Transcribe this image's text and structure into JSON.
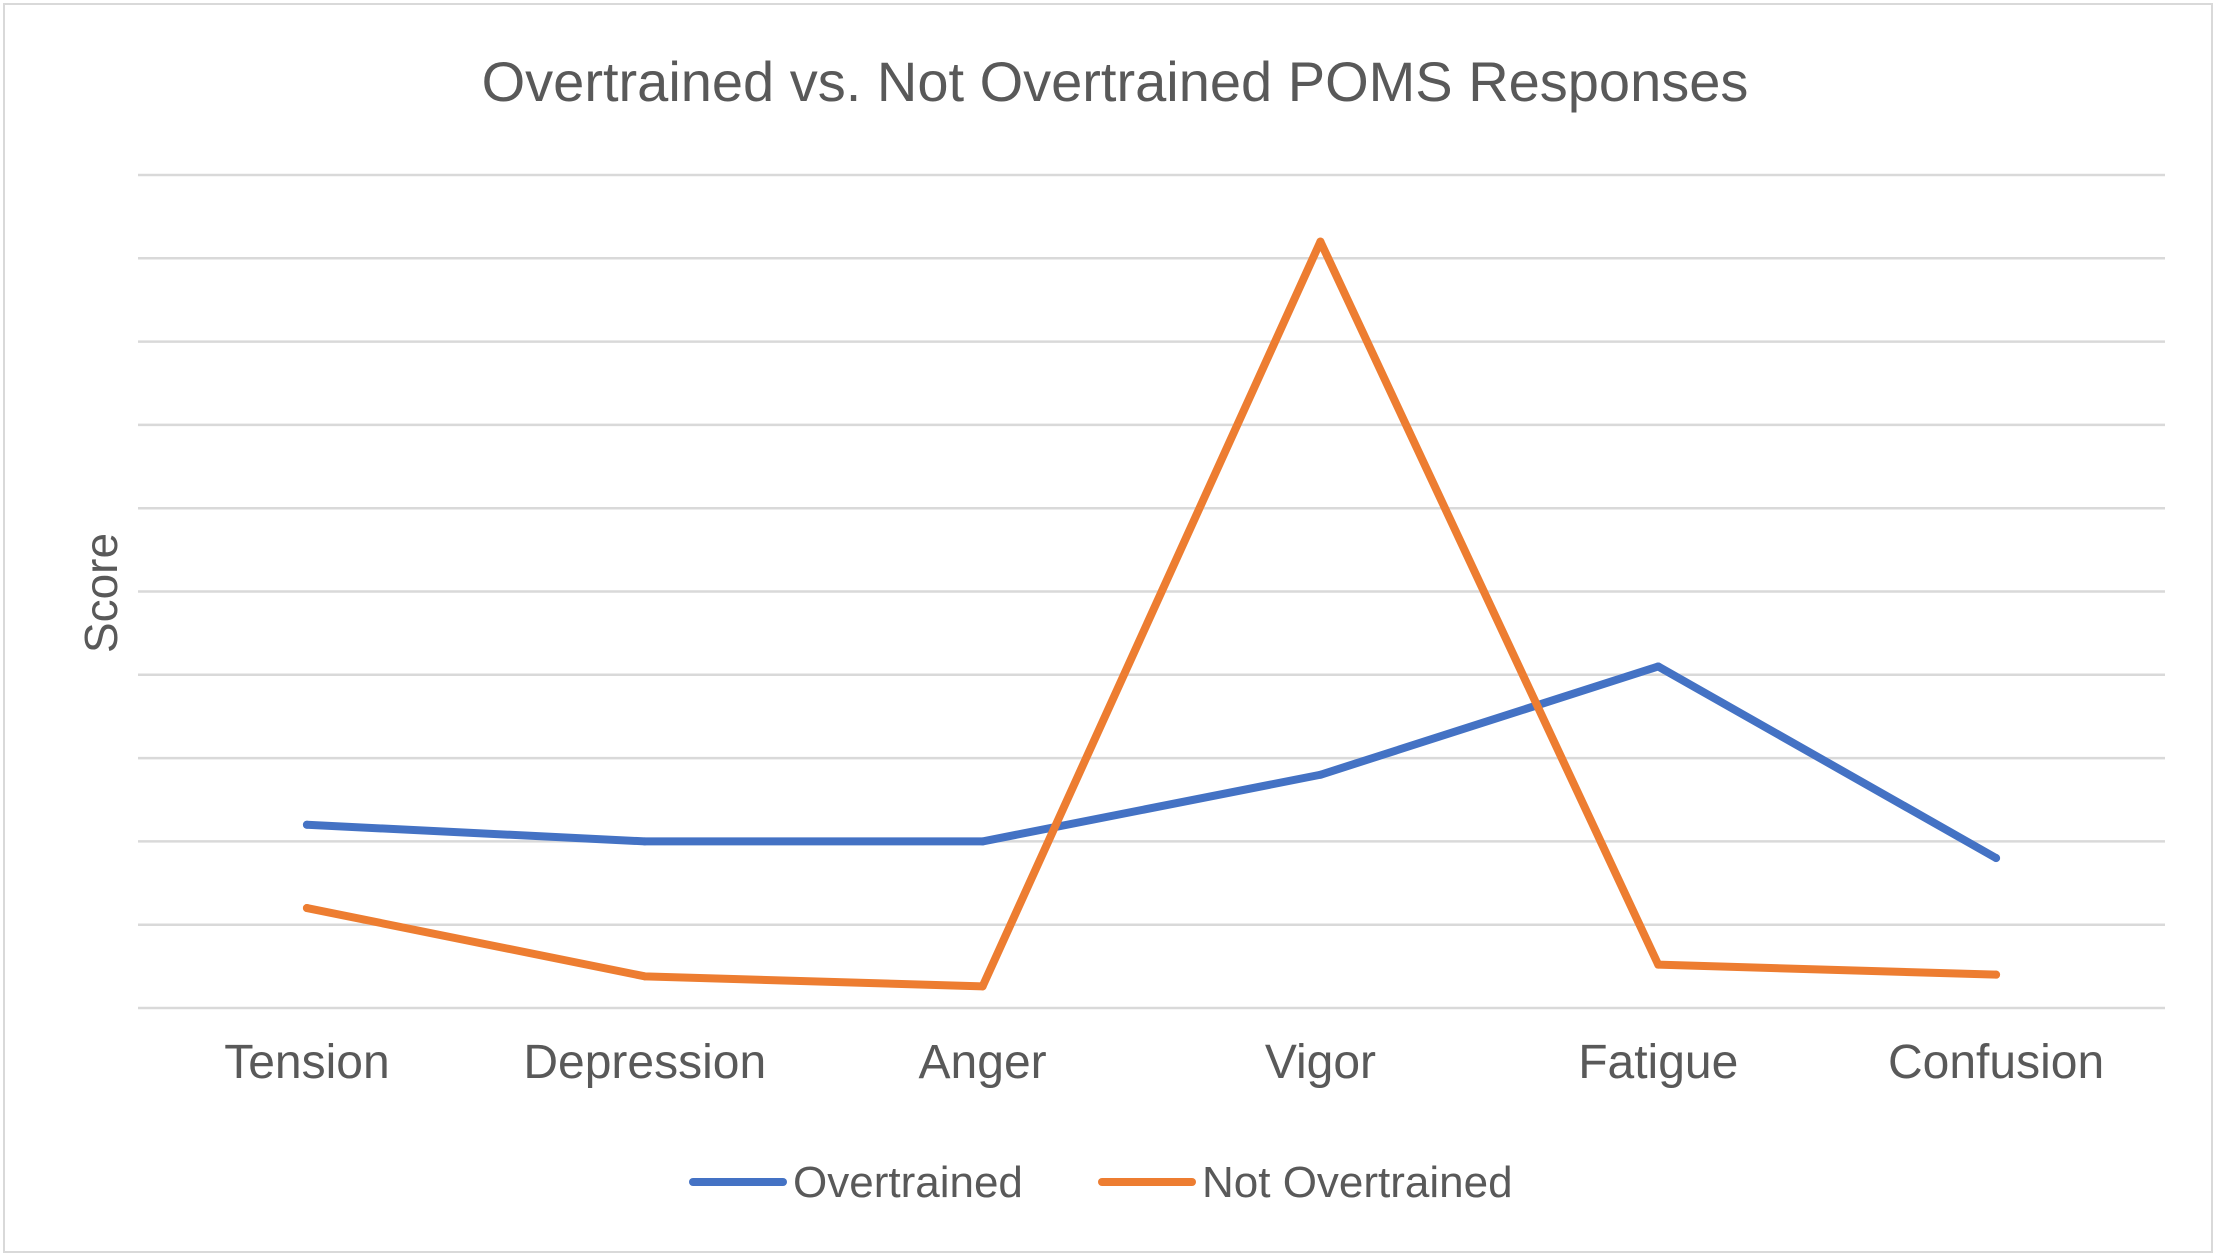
{
  "chart_data": {
    "type": "line",
    "title": "Overtrained vs. Not Overtrained POMS Responses",
    "xlabel": "",
    "ylabel": "Score",
    "categories": [
      "Tension",
      "Depression",
      "Anger",
      "Vigor",
      "Fatigue",
      "Confusion"
    ],
    "ylim": [
      0,
      10
    ],
    "y_gridlines": 11,
    "y_tick_labels_shown": false,
    "grid": true,
    "legend_position": "bottom",
    "series": [
      {
        "name": "Overtrained",
        "color": "#4472c4",
        "values": [
          2.2,
          2.0,
          2.0,
          2.8,
          4.1,
          1.8
        ]
      },
      {
        "name": "Not Overtrained",
        "color": "#ed7d31",
        "values": [
          1.2,
          0.38,
          0.26,
          9.2,
          0.52,
          0.4
        ]
      }
    ]
  }
}
